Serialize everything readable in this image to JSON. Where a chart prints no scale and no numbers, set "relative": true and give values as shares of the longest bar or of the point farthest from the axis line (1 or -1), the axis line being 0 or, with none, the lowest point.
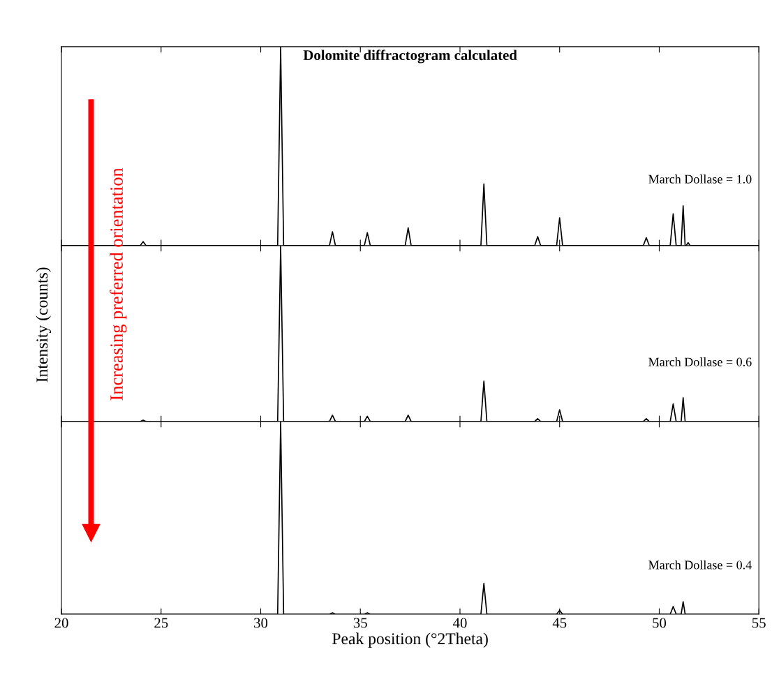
{
  "chart_data": [
    {
      "type": "line",
      "title": "Dolomite diffractogram calculated",
      "relative": true,
      "tick_labels": false,
      "annotations": [
        "March Dollase = 1.0",
        "Increasing preferred orientation"
      ],
      "series": [
        {
          "color": "#000000",
          "x": [
            20,
            23.95,
            24.1,
            24.25,
            30.85,
            31.0,
            31.15,
            33.45,
            33.6,
            33.75,
            35.2,
            35.35,
            35.5,
            37.25,
            37.4,
            37.55,
            41.05,
            41.2,
            41.35,
            43.75,
            43.9,
            44.05,
            44.85,
            45.0,
            45.15,
            49.2,
            49.35,
            49.5,
            50.55,
            50.7,
            50.85,
            51.1,
            51.2,
            51.3,
            51.35,
            51.45,
            51.55,
            55
          ],
          "values": [
            0,
            0,
            0.02,
            0,
            0,
            1,
            0,
            0,
            0.07,
            0,
            0,
            0.065,
            0,
            0,
            0.09,
            0,
            0,
            0.31,
            0,
            0,
            0.045,
            0,
            0,
            0.14,
            0,
            0,
            0.04,
            0,
            0,
            0.16,
            0,
            0,
            0.2,
            0,
            0,
            0.015,
            0,
            0
          ]
        }
      ],
      "xlim": [
        20,
        55
      ],
      "xticks": [
        20,
        25,
        30,
        35,
        40,
        45,
        50,
        55
      ]
    },
    {
      "type": "line",
      "relative": true,
      "tick_labels": false,
      "ylabel": "Intensity (counts)",
      "annotations": [
        "March Dollase = 0.6"
      ],
      "series": [
        {
          "color": "#000000",
          "x": [
            20,
            23.95,
            24.1,
            24.25,
            30.85,
            31.0,
            31.15,
            33.45,
            33.6,
            33.75,
            35.2,
            35.35,
            35.5,
            37.25,
            37.4,
            37.55,
            41.05,
            41.2,
            41.35,
            43.75,
            43.9,
            44.05,
            44.85,
            45.0,
            45.15,
            49.2,
            49.35,
            49.5,
            50.55,
            50.7,
            50.85,
            51.1,
            51.2,
            51.3,
            55
          ],
          "values": [
            0,
            0,
            0.008,
            0,
            0,
            1,
            0,
            0,
            0.036,
            0,
            0,
            0.03,
            0,
            0,
            0.036,
            0,
            0,
            0.23,
            0,
            0,
            0.016,
            0,
            0,
            0.067,
            0,
            0,
            0.016,
            0,
            0,
            0.1,
            0,
            0,
            0.135,
            0,
            0
          ]
        }
      ],
      "xlim": [
        20,
        55
      ],
      "xticks": [
        20,
        25,
        30,
        35,
        40,
        45,
        50,
        55
      ]
    },
    {
      "type": "line",
      "relative": true,
      "tick_labels": "x",
      "xlabel": "Peak position (°2Theta)",
      "annotations": [
        "March Dollase = 0.4"
      ],
      "series": [
        {
          "color": "#000000",
          "x": [
            20,
            30.85,
            31.0,
            31.15,
            33.45,
            33.6,
            33.75,
            35.2,
            35.35,
            35.5,
            41.05,
            41.2,
            41.35,
            44.85,
            45.0,
            45.15,
            50.55,
            50.7,
            50.85,
            51.1,
            51.2,
            51.3,
            55
          ],
          "values": [
            0,
            0,
            1,
            0,
            0,
            0.007,
            0,
            0,
            0.007,
            0,
            0,
            0.16,
            0,
            0,
            0.02,
            0,
            0,
            0.04,
            0,
            0,
            0.065,
            0,
            0
          ]
        }
      ],
      "xlim": [
        20,
        55
      ],
      "xticks": [
        20,
        25,
        30,
        35,
        40,
        45,
        50,
        55
      ]
    }
  ]
}
